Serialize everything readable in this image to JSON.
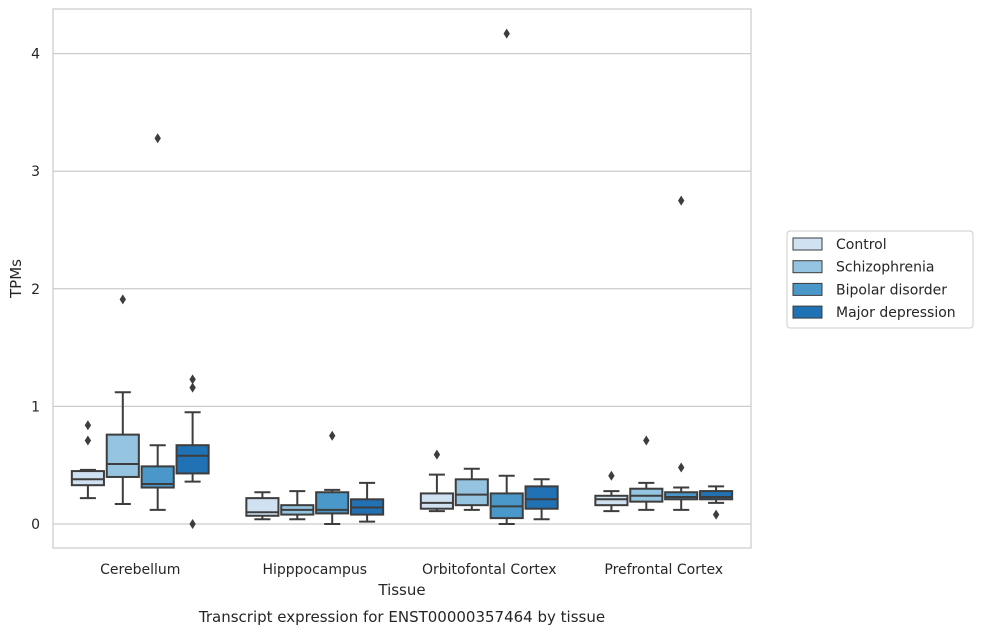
{
  "chart_data": {
    "type": "box",
    "title": "",
    "caption": "Transcript expression for ENST00000357464 by tissue",
    "xlabel": "Tissue",
    "ylabel": "TPMs",
    "ylim": [
      -0.2,
      4.38
    ],
    "yticks": [
      0,
      1,
      2,
      3,
      4
    ],
    "grid": "horizontal",
    "legend_position": "right",
    "categories": [
      "Cerebellum",
      "Hipppocampus",
      "Orbitofontal Cortex",
      "Prefrontal Cortex"
    ],
    "series": [
      {
        "name": "Control",
        "color": "#d0e1f2",
        "boxes": [
          {
            "whislo": 0.22,
            "q1": 0.33,
            "med": 0.38,
            "q3": 0.45,
            "whishi": 0.46,
            "fliers": [
              0.84,
              0.71
            ]
          },
          {
            "whislo": 0.04,
            "q1": 0.07,
            "med": 0.1,
            "q3": 0.22,
            "whishi": 0.27,
            "fliers": []
          },
          {
            "whislo": 0.11,
            "q1": 0.13,
            "med": 0.18,
            "q3": 0.26,
            "whishi": 0.42,
            "fliers": [
              0.59
            ]
          },
          {
            "whislo": 0.11,
            "q1": 0.16,
            "med": 0.21,
            "q3": 0.24,
            "whishi": 0.28,
            "fliers": [
              0.41
            ]
          }
        ]
      },
      {
        "name": "Schizophrenia",
        "color": "#94c4df",
        "boxes": [
          {
            "whislo": 0.17,
            "q1": 0.4,
            "med": 0.51,
            "q3": 0.76,
            "whishi": 1.12,
            "fliers": [
              1.91
            ]
          },
          {
            "whislo": 0.04,
            "q1": 0.08,
            "med": 0.12,
            "q3": 0.16,
            "whishi": 0.28,
            "fliers": []
          },
          {
            "whislo": 0.12,
            "q1": 0.16,
            "med": 0.25,
            "q3": 0.38,
            "whishi": 0.47,
            "fliers": []
          },
          {
            "whislo": 0.12,
            "q1": 0.19,
            "med": 0.24,
            "q3": 0.3,
            "whishi": 0.35,
            "fliers": [
              0.71
            ]
          }
        ]
      },
      {
        "name": "Bipolar disorder",
        "color": "#4a98c9",
        "boxes": [
          {
            "whislo": 0.12,
            "q1": 0.31,
            "med": 0.34,
            "q3": 0.49,
            "whishi": 0.67,
            "fliers": [
              3.28
            ]
          },
          {
            "whislo": 0.0,
            "q1": 0.09,
            "med": 0.12,
            "q3": 0.27,
            "whishi": 0.29,
            "fliers": [
              0.75
            ]
          },
          {
            "whislo": 0.0,
            "q1": 0.05,
            "med": 0.15,
            "q3": 0.26,
            "whishi": 0.41,
            "fliers": [
              4.17
            ]
          },
          {
            "whislo": 0.12,
            "q1": 0.21,
            "med": 0.23,
            "q3": 0.27,
            "whishi": 0.31,
            "fliers": [
              0.48,
              2.75
            ]
          }
        ]
      },
      {
        "name": "Major depression",
        "color": "#2171b5",
        "boxes": [
          {
            "whislo": 0.36,
            "q1": 0.43,
            "med": 0.58,
            "q3": 0.67,
            "whishi": 0.95,
            "fliers": [
              1.23,
              1.16,
              0.0
            ]
          },
          {
            "whislo": 0.02,
            "q1": 0.08,
            "med": 0.14,
            "q3": 0.21,
            "whishi": 0.35,
            "fliers": []
          },
          {
            "whislo": 0.04,
            "q1": 0.13,
            "med": 0.21,
            "q3": 0.32,
            "whishi": 0.38,
            "fliers": []
          },
          {
            "whislo": 0.18,
            "q1": 0.21,
            "med": 0.23,
            "q3": 0.28,
            "whishi": 0.32,
            "fliers": [
              0.08
            ]
          }
        ]
      }
    ]
  }
}
